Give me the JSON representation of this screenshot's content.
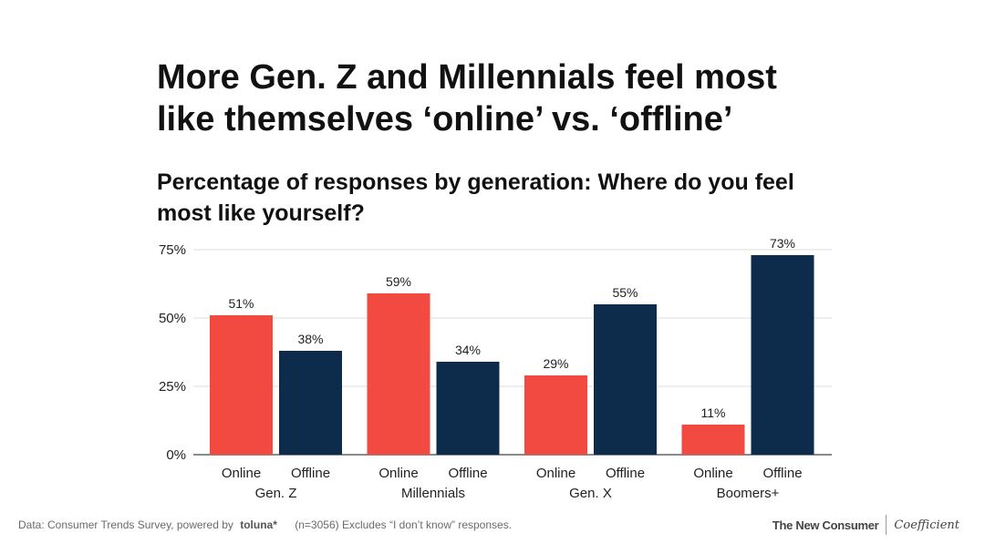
{
  "title_lines": [
    "More Gen. Z and Millennials feel most",
    "like themselves ‘online’ vs. ‘offline’"
  ],
  "subtitle_lines": [
    "Percentage of responses by generation: Where do you feel",
    "most like yourself?"
  ],
  "chart_data": {
    "type": "bar",
    "categories": [
      "Gen. Z",
      "Millennials",
      "Gen. X",
      "Boomers+"
    ],
    "series": [
      {
        "name": "Online",
        "color": "#f24a41",
        "values": [
          51,
          59,
          29,
          11
        ]
      },
      {
        "name": "Offline",
        "color": "#0d2b4a",
        "values": [
          38,
          34,
          55,
          73
        ]
      }
    ],
    "value_label_suffix": "%",
    "yticks": [
      0,
      25,
      50,
      75
    ],
    "ytick_labels": [
      "0%",
      "25%",
      "50%",
      "75%"
    ],
    "ylim": [
      0,
      75
    ],
    "grid": true,
    "legend": "none"
  },
  "footer": {
    "source": "Data: Consumer Trends Survey, powered by",
    "toluna": "toluna*",
    "note": "(n=3056) Excludes “I don’t know” responses.",
    "brand_left": "The New Consumer",
    "brand_right": "Coefficient"
  }
}
